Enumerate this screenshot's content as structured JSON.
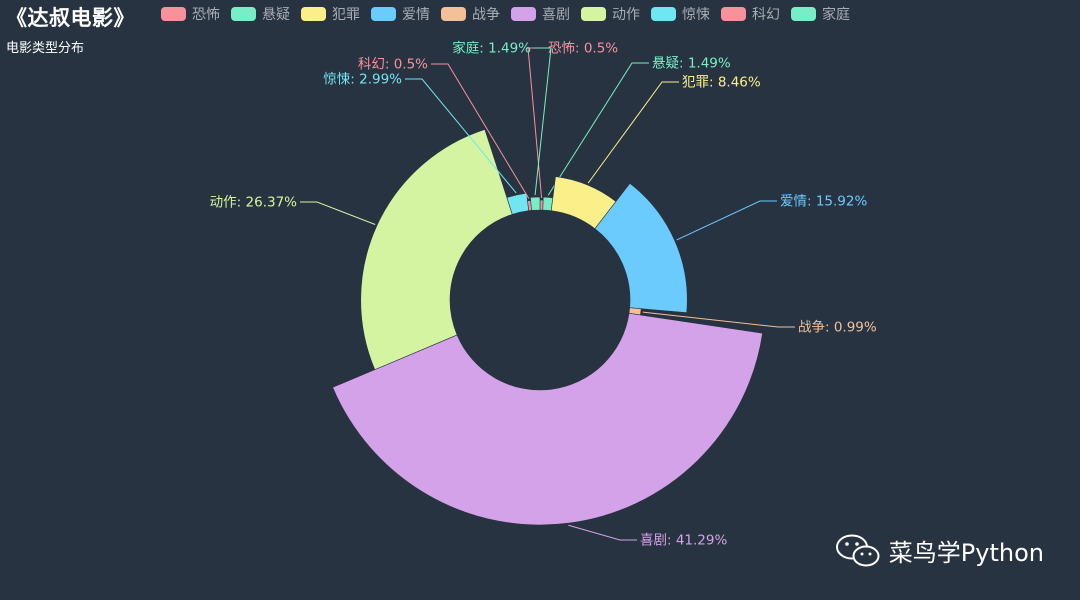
{
  "header": {
    "title": "《达叔电影》",
    "subtitle": "电影类型分布"
  },
  "watermark": {
    "icon": "wechat-icon",
    "text": "菜鸟学Python"
  },
  "chart_data": {
    "type": "pie",
    "variant": "rose-donut",
    "legend_position": "top",
    "series": [
      {
        "name": "恐怖",
        "value": 0.5,
        "label": "恐怖: 0.5%",
        "color": "#f7919c"
      },
      {
        "name": "悬疑",
        "value": 1.49,
        "label": "悬疑: 1.49%",
        "color": "#79eec6"
      },
      {
        "name": "犯罪",
        "value": 8.46,
        "label": "犯罪: 8.46%",
        "color": "#f9f08a"
      },
      {
        "name": "爱情",
        "value": 15.92,
        "label": "爱情: 15.92%",
        "color": "#6bcbfd"
      },
      {
        "name": "战争",
        "value": 0.99,
        "label": "战争: 0.99%",
        "color": "#f3c09a"
      },
      {
        "name": "喜剧",
        "value": 41.29,
        "label": "喜剧: 41.29%",
        "color": "#d4a2e9"
      },
      {
        "name": "动作",
        "value": 26.37,
        "label": "动作: 26.37%",
        "color": "#d4f4a2"
      },
      {
        "name": "惊悚",
        "value": 2.99,
        "label": "惊悚: 2.99%",
        "color": "#6fe6f1"
      },
      {
        "name": "科幻",
        "value": 0.5,
        "label": "科幻: 0.5%",
        "color": "#f7919c"
      },
      {
        "name": "家庭",
        "value": 1.49,
        "label": "家庭: 1.49%",
        "color": "#79eec6"
      }
    ]
  }
}
